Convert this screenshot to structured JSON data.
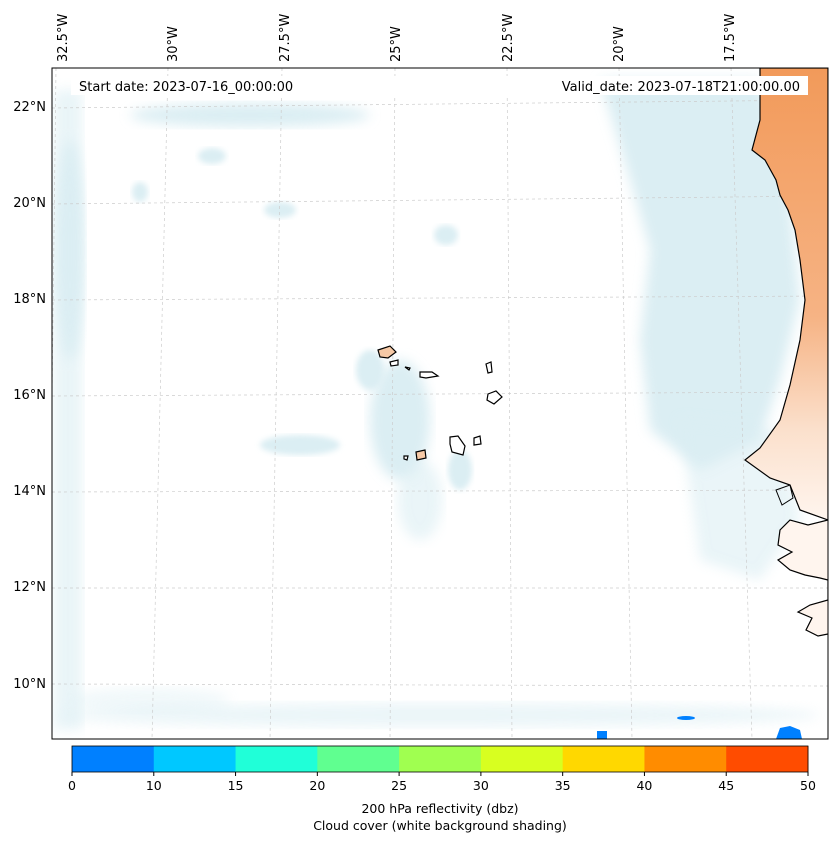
{
  "header": {
    "start_date": "Start date: 2023-07-16_00:00:00",
    "valid_date": "Valid_date: 2023-07-18T21:00:00.00"
  },
  "axes": {
    "longitude_labels": [
      "32.5°W",
      "30°W",
      "27.5°W",
      "25°W",
      "22.5°W",
      "20°W",
      "17.5°W"
    ],
    "latitude_labels": [
      "22°N",
      "20°N",
      "18°N",
      "16°N",
      "14°N",
      "12°N",
      "10°N"
    ]
  },
  "colorbar": {
    "ticks": [
      "0",
      "10",
      "15",
      "20",
      "25",
      "30",
      "35",
      "40",
      "45",
      "50"
    ],
    "colors": [
      "#0080ff",
      "#00c8ff",
      "#20ffd8",
      "#60ff90",
      "#a0ff50",
      "#d8ff20",
      "#ffd800",
      "#ff8c00",
      "#ff4c00"
    ],
    "title_line1": "200 hPa reflectivity (dbz)",
    "title_line2": "Cloud cover (white background shading)"
  },
  "map": {
    "land_color": "#f4a46a",
    "cloud_color": "#cfe8ef",
    "echo_color": "#0080ff",
    "coastline_color": "#000000",
    "grid_color": "#cccccc"
  }
}
